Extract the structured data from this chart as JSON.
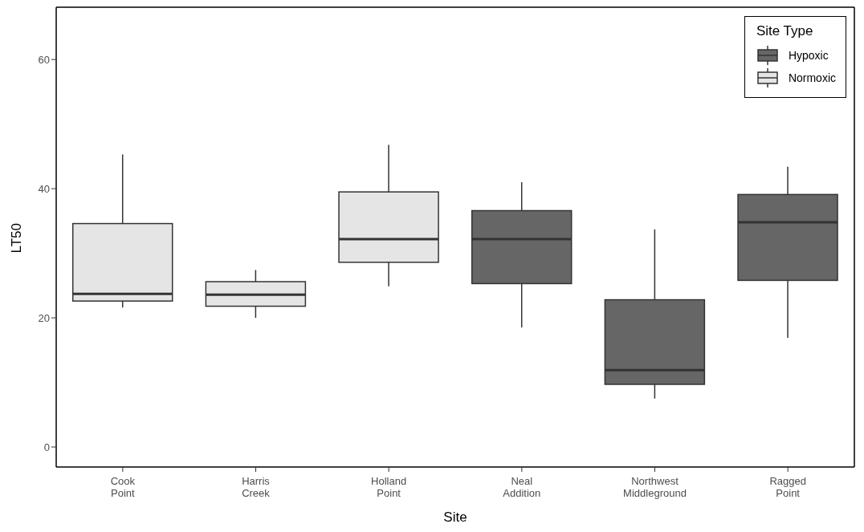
{
  "chart_data": {
    "type": "box",
    "xlabel": "Site",
    "ylabel": "LT50",
    "legend_title": "Site Type",
    "legend": "top right",
    "categories": [
      "Cook Point",
      "Harris Creek",
      "Holland Point",
      "Neal Addition",
      "Northwest Middleground",
      "Ragged Point"
    ],
    "ylim": [
      -3.1,
      68.1
    ],
    "yticks": [
      0,
      20,
      40,
      60
    ],
    "series": [
      {
        "name": "Hypoxic",
        "color": "#666666",
        "boxes": [
          null,
          null,
          null,
          {
            "low": 18.5,
            "q1": 25.3,
            "median": 32.2,
            "q3": 36.6,
            "high": 41.0
          },
          {
            "low": 7.5,
            "q1": 9.7,
            "median": 11.9,
            "q3": 22.8,
            "high": 33.7
          },
          {
            "low": 16.9,
            "q1": 25.8,
            "median": 34.8,
            "q3": 39.1,
            "high": 43.4
          }
        ]
      },
      {
        "name": "Normoxic",
        "color": "#e5e5e5",
        "boxes": [
          {
            "low": 21.6,
            "q1": 22.6,
            "median": 23.7,
            "q3": 34.6,
            "high": 45.3
          },
          {
            "low": 20.0,
            "q1": 21.8,
            "median": 23.6,
            "q3": 25.6,
            "high": 27.4
          },
          {
            "low": 24.9,
            "q1": 28.6,
            "median": 32.2,
            "q3": 39.5,
            "high": 46.8
          },
          null,
          null,
          null
        ]
      }
    ]
  }
}
